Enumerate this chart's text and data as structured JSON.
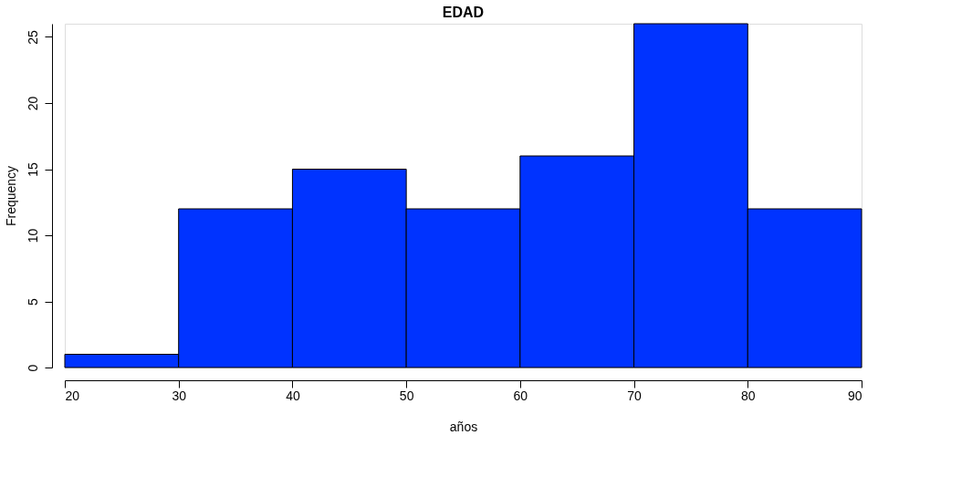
{
  "chart_data": {
    "type": "histogram",
    "title": "EDAD",
    "xlabel": "años",
    "ylabel": "Frequency",
    "bins": [
      20,
      30,
      40,
      50,
      60,
      70,
      80,
      90
    ],
    "values": [
      1,
      12,
      15,
      12,
      16,
      26,
      12
    ],
    "color": "#0033ff",
    "xlim": [
      20,
      90
    ],
    "xticks": [
      20,
      30,
      40,
      50,
      60,
      70,
      80,
      90
    ],
    "ylim": [
      0,
      26
    ],
    "yticks": [
      0,
      5,
      10,
      15,
      20,
      25
    ],
    "grid": false
  }
}
